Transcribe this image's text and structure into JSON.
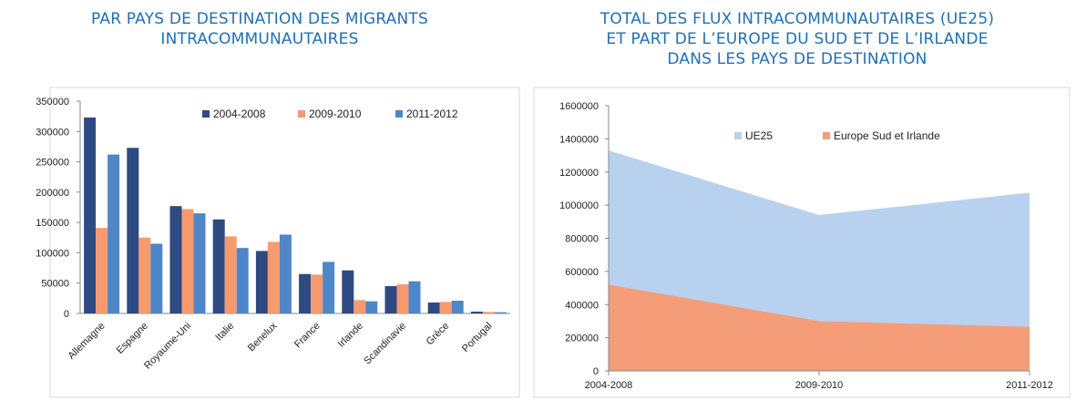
{
  "chart_data": [
    {
      "type": "bar",
      "title_lines": [
        "PAR PAYS DE DESTINATION DES MIGRANTS",
        "INTRACOMMUNAUTAIRES"
      ],
      "categories": [
        "Allemagne",
        "Espagne",
        "Royaume-Uni",
        "Italie",
        "Benelux",
        "France",
        "Irlande",
        "Scandinavie",
        "Grèce",
        "Portugal"
      ],
      "series": [
        {
          "name": "2004-2008",
          "color": "#2e4a82",
          "values": [
            323000,
            273000,
            177000,
            155000,
            103000,
            65000,
            71000,
            45000,
            18000,
            3000
          ]
        },
        {
          "name": "2009-2010",
          "color": "#f79a6e",
          "values": [
            141000,
            125000,
            172000,
            127000,
            118000,
            64000,
            22000,
            48000,
            19000,
            2500
          ]
        },
        {
          "name": "2011-2012",
          "color": "#4f86c9",
          "values": [
            262000,
            115000,
            165000,
            108000,
            130000,
            85000,
            20000,
            53000,
            21000,
            2000
          ]
        }
      ],
      "ylim": [
        0,
        350000
      ],
      "yticks": [
        "0",
        "50000",
        "100000",
        "150000",
        "200000",
        "250000",
        "300000",
        "350000"
      ],
      "legend_position": "top-right"
    },
    {
      "type": "area",
      "title_lines": [
        "TOTAL DES FLUX INTRACOMMUNAUTAIRES (UE25)",
        "ET PART DE L’EUROPE DU SUD ET DE L’IRLANDE",
        "DANS LES PAYS DE DESTINATION"
      ],
      "x": [
        "2004-2008",
        "2009-2010",
        "2011-2012"
      ],
      "series": [
        {
          "name": "UE25",
          "color": "#b8d1ee",
          "values": [
            1330000,
            940000,
            1075000
          ]
        },
        {
          "name": "Europe Sud et Irlande",
          "color": "#f59d78",
          "values": [
            520000,
            300000,
            265000
          ]
        }
      ],
      "ylim": [
        0,
        1600000
      ],
      "yticks": [
        "0",
        "200000",
        "400000",
        "600000",
        "800000",
        "1000000",
        "1200000",
        "1400000",
        "1600000"
      ],
      "legend_position": "top"
    }
  ]
}
